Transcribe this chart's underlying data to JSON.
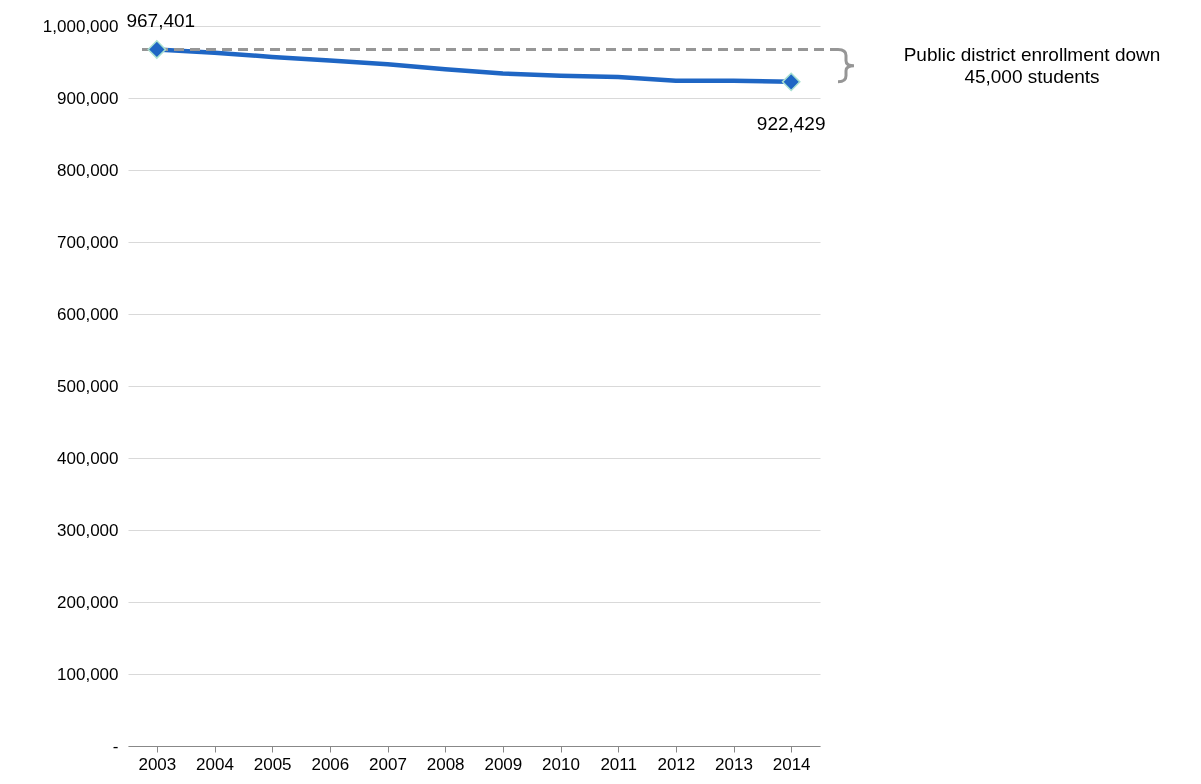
{
  "chart_data": {
    "type": "line",
    "categories": [
      "2003",
      "2004",
      "2005",
      "2006",
      "2007",
      "2008",
      "2009",
      "2010",
      "2011",
      "2012",
      "2013",
      "2014"
    ],
    "series": [
      {
        "color": "#1f66c4",
        "values": [
          967401,
          963000,
          957000,
          952000,
          947000,
          940000,
          934000,
          931000,
          929000,
          924000,
          924000,
          922429
        ]
      },
      {
        "type": "scatter",
        "color": "#1f66c4",
        "marker": "diamond",
        "values": [
          967401,
          null,
          null,
          null,
          null,
          null,
          null,
          null,
          null,
          null,
          null,
          922429
        ],
        "value_labels": [
          "967,401",
          null,
          null,
          null,
          null,
          null,
          null,
          null,
          null,
          null,
          null,
          "922,429"
        ]
      }
    ],
    "ylim": [
      0,
      1000000
    ],
    "yticks": [
      {
        "value": 0,
        "label": "-"
      },
      {
        "value": 100000,
        "label": "100,000"
      },
      {
        "value": 200000,
        "label": "200,000"
      },
      {
        "value": 300000,
        "label": "300,000"
      },
      {
        "value": 400000,
        "label": "400,000"
      },
      {
        "value": 500000,
        "label": "500,000"
      },
      {
        "value": 600000,
        "label": "600,000"
      },
      {
        "value": 700000,
        "label": "700,000"
      },
      {
        "value": 800000,
        "label": "800,000"
      },
      {
        "value": 900000,
        "label": "900,000"
      },
      {
        "value": 1000000,
        "label": "1,000,000"
      }
    ],
    "grid": "y",
    "line_style": "solid",
    "ref_lines": [
      {
        "axis": "y",
        "value": 967401,
        "color": "#969696",
        "line_style": "dashed"
      }
    ],
    "annotations": [
      "Public district enrollment down\n45,000 students"
    ]
  }
}
